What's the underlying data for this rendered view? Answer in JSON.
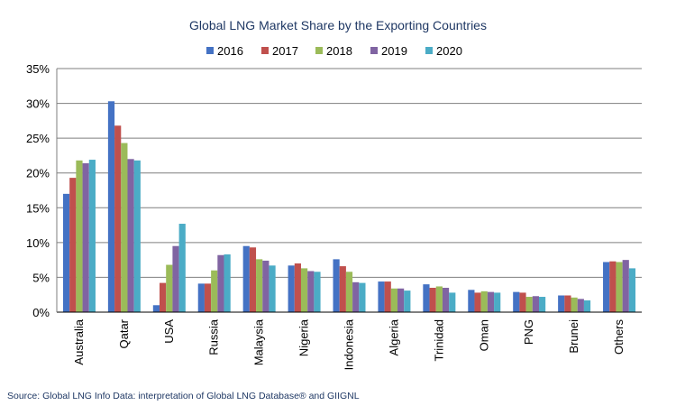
{
  "chart_data": {
    "type": "bar",
    "title": "Global LNG Market Share by the Exporting Countries",
    "categories": [
      "Australia",
      "Qatar",
      "USA",
      "Russia",
      "Malaysia",
      "Nigeria",
      "Indonesia",
      "Algeria",
      "Trinidad",
      "Oman",
      "PNG",
      "Brunei",
      "Others"
    ],
    "series": [
      {
        "name": "2016",
        "color": "#4472c4",
        "values": [
          17.0,
          30.3,
          1.0,
          4.1,
          9.5,
          6.7,
          7.6,
          4.4,
          4.0,
          3.2,
          2.9,
          2.4,
          7.2
        ]
      },
      {
        "name": "2017",
        "color": "#c0504d",
        "values": [
          19.3,
          26.8,
          4.2,
          4.1,
          9.3,
          7.0,
          6.6,
          4.4,
          3.5,
          2.8,
          2.8,
          2.4,
          7.3
        ]
      },
      {
        "name": "2018",
        "color": "#9bbb59",
        "values": [
          21.8,
          24.3,
          6.8,
          6.0,
          7.6,
          6.3,
          5.8,
          3.4,
          3.7,
          3.0,
          2.2,
          2.1,
          7.2
        ]
      },
      {
        "name": "2019",
        "color": "#8064a2",
        "values": [
          21.4,
          22.0,
          9.5,
          8.2,
          7.4,
          5.9,
          4.3,
          3.4,
          3.5,
          2.9,
          2.3,
          1.9,
          7.5
        ]
      },
      {
        "name": "2020",
        "color": "#4bacc6",
        "values": [
          21.9,
          21.8,
          12.7,
          8.3,
          6.7,
          5.8,
          4.2,
          3.1,
          2.8,
          2.8,
          2.2,
          1.7,
          6.3
        ]
      }
    ],
    "yticks": [
      "0%",
      "5%",
      "10%",
      "15%",
      "20%",
      "25%",
      "30%",
      "35%"
    ],
    "ylim": [
      0,
      35
    ],
    "xlabel": "",
    "ylabel": "",
    "grid": true,
    "legend_position": "top"
  },
  "source_note": "Source: Global LNG Info  Data: interpretation of Global LNG Database® and GIIGNL",
  "colors": {
    "title": "#1f3864",
    "axis": "#000000",
    "grid": "#7f7f7f"
  }
}
